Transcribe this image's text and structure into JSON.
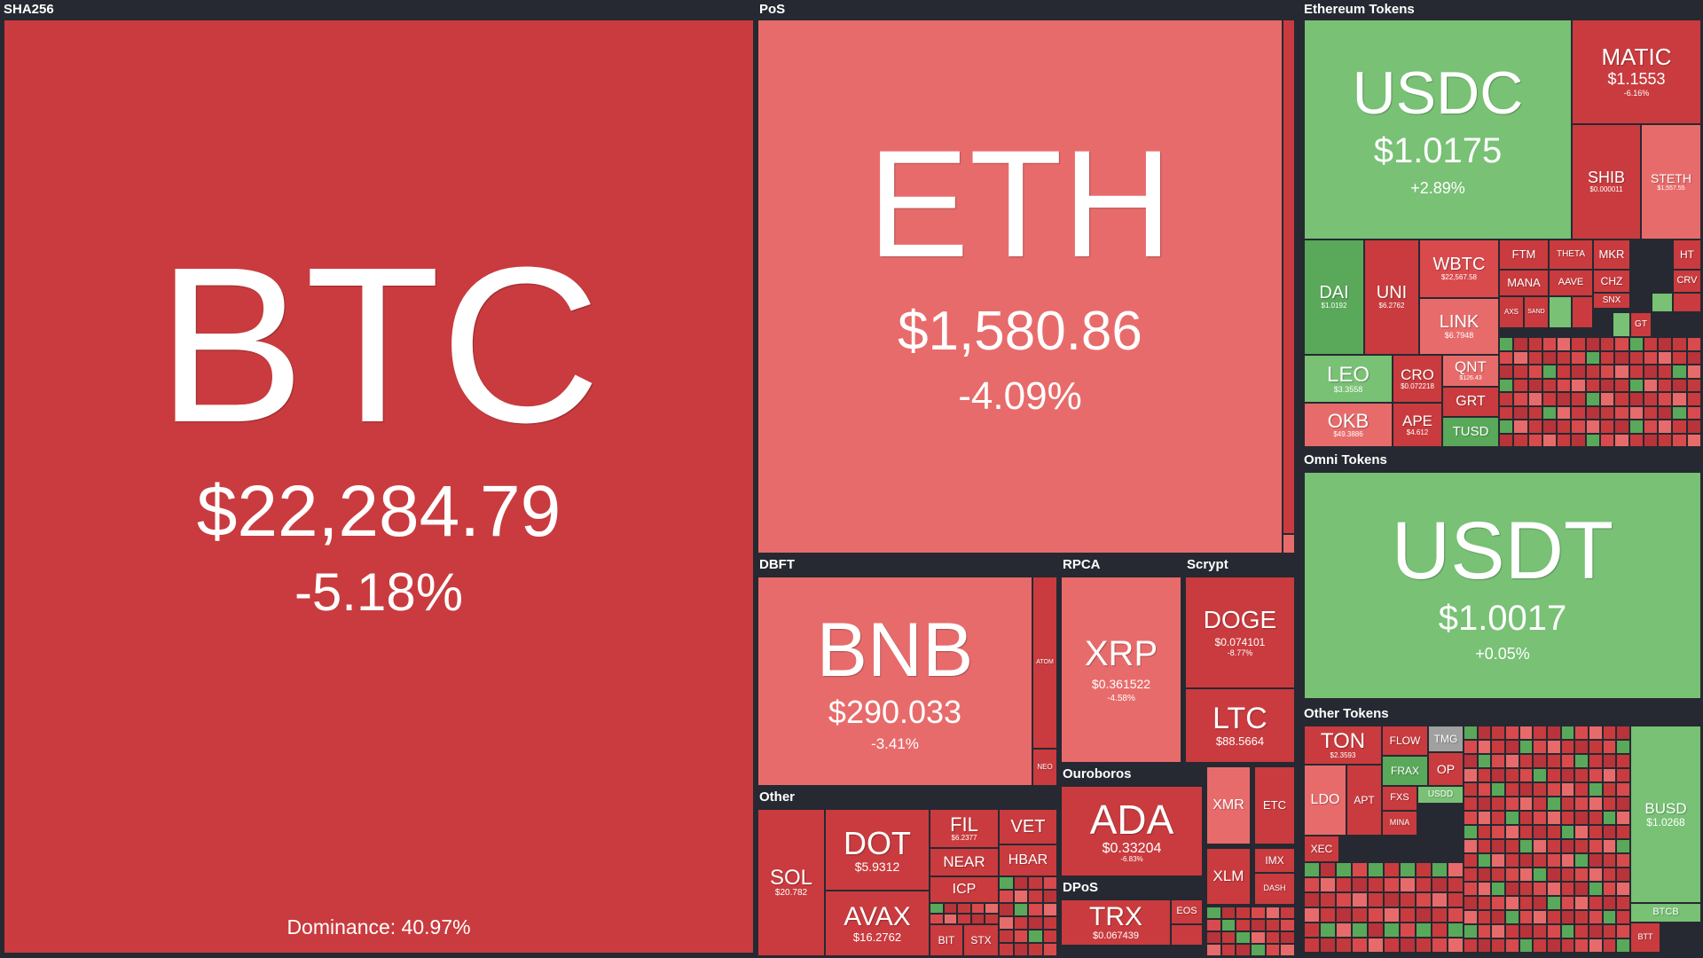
{
  "groups": {
    "sha256": "SHA256",
    "pos": "PoS",
    "eth_tokens": "Ethereum Tokens",
    "omni": "Omni Tokens",
    "other_tokens": "Other Tokens",
    "dbft": "DBFT",
    "rpca": "RPCA",
    "scrypt": "Scrypt",
    "other": "Other",
    "ouroboros": "Ouroboros",
    "dpos": "DPoS"
  },
  "tiles": {
    "btc": {
      "sym": "BTC",
      "price": "$22,284.79",
      "change": "-5.18%"
    },
    "btc_dominance": "Dominance: 40.97%",
    "eth": {
      "sym": "ETH",
      "price": "$1,580.86",
      "change": "-4.09%"
    },
    "usdc": {
      "sym": "USDC",
      "price": "$1.0175",
      "change": "+2.89%"
    },
    "matic": {
      "sym": "MATIC",
      "price": "$1.1553",
      "change": "-6.16%"
    },
    "shib": {
      "sym": "SHIB",
      "price": "$0.000011",
      "change": ""
    },
    "steth": {
      "sym": "STETH",
      "price": "$1,557.55",
      "change": ""
    },
    "dai": {
      "sym": "DAI",
      "price": "$1.0192",
      "change": ""
    },
    "uni": {
      "sym": "UNI",
      "price": "$6.2762",
      "change": ""
    },
    "wbtc": {
      "sym": "WBTC",
      "price": "$22,567.58",
      "change": ""
    },
    "link": {
      "sym": "LINK",
      "price": "$6.7948",
      "change": ""
    },
    "ftm": {
      "sym": "FTM",
      "price": "",
      "change": ""
    },
    "theta": {
      "sym": "THETA",
      "price": "",
      "change": ""
    },
    "mkr": {
      "sym": "MKR",
      "price": "",
      "change": ""
    },
    "ht": {
      "sym": "HT",
      "price": "",
      "change": ""
    },
    "mana": {
      "sym": "MANA",
      "price": "",
      "change": ""
    },
    "aave": {
      "sym": "AAVE",
      "price": "",
      "change": ""
    },
    "chz": {
      "sym": "CHZ",
      "price": "",
      "change": ""
    },
    "crv": {
      "sym": "CRV",
      "price": "",
      "change": ""
    },
    "snx": {
      "sym": "SNX",
      "price": "",
      "change": ""
    },
    "axs": {
      "sym": "AXS",
      "price": "",
      "change": ""
    },
    "sand": {
      "sym": "SAND",
      "price": "",
      "change": ""
    },
    "gt": {
      "sym": "GT",
      "price": "",
      "change": ""
    },
    "leo": {
      "sym": "LEO",
      "price": "$3.3558",
      "change": ""
    },
    "cro": {
      "sym": "CRO",
      "price": "$0.072218",
      "change": ""
    },
    "qnt": {
      "sym": "QNT",
      "price": "$126.43",
      "change": ""
    },
    "grt": {
      "sym": "GRT",
      "price": "",
      "change": ""
    },
    "okb": {
      "sym": "OKB",
      "price": "$49.3886",
      "change": ""
    },
    "ape": {
      "sym": "APE",
      "price": "$4.612",
      "change": ""
    },
    "tusd": {
      "sym": "TUSD",
      "price": "",
      "change": ""
    },
    "usdt": {
      "sym": "USDT",
      "price": "$1.0017",
      "change": "+0.05%"
    },
    "bnb": {
      "sym": "BNB",
      "price": "$290.033",
      "change": "-3.41%"
    },
    "atom": {
      "sym": "ATOM",
      "price": "",
      "change": ""
    },
    "neo": {
      "sym": "NEO",
      "price": "",
      "change": ""
    },
    "xrp": {
      "sym": "XRP",
      "price": "$0.361522",
      "change": "-4.58%"
    },
    "doge": {
      "sym": "DOGE",
      "price": "$0.074101",
      "change": "-8.77%"
    },
    "ltc": {
      "sym": "LTC",
      "price": "$88.5664",
      "change": ""
    },
    "sol": {
      "sym": "SOL",
      "price": "$20.782",
      "change": ""
    },
    "dot": {
      "sym": "DOT",
      "price": "$5.9312",
      "change": ""
    },
    "avax": {
      "sym": "AVAX",
      "price": "$16.2762",
      "change": ""
    },
    "fil": {
      "sym": "FIL",
      "price": "$6.2377",
      "change": ""
    },
    "vet": {
      "sym": "VET",
      "price": "",
      "change": ""
    },
    "near": {
      "sym": "NEAR",
      "price": "",
      "change": ""
    },
    "hbar": {
      "sym": "HBAR",
      "price": "",
      "change": ""
    },
    "icp": {
      "sym": "ICP",
      "price": "",
      "change": ""
    },
    "bit": {
      "sym": "BIT",
      "price": "",
      "change": ""
    },
    "stx": {
      "sym": "STX",
      "price": "",
      "change": ""
    },
    "ada": {
      "sym": "ADA",
      "price": "$0.33204",
      "change": "-6.83%"
    },
    "xmr": {
      "sym": "XMR",
      "price": "",
      "change": ""
    },
    "etc": {
      "sym": "ETC",
      "price": "",
      "change": ""
    },
    "xlm": {
      "sym": "XLM",
      "price": "",
      "change": ""
    },
    "imx": {
      "sym": "IMX",
      "price": "",
      "change": ""
    },
    "dash": {
      "sym": "DASH",
      "price": "",
      "change": ""
    },
    "trx": {
      "sym": "TRX",
      "price": "$0.067439",
      "change": ""
    },
    "eos": {
      "sym": "EOS",
      "price": "",
      "change": ""
    },
    "ton": {
      "sym": "TON",
      "price": "$2.3593",
      "change": ""
    },
    "flow": {
      "sym": "FLOW",
      "price": "",
      "change": ""
    },
    "tmg": {
      "sym": "TMG",
      "price": "",
      "change": ""
    },
    "frax": {
      "sym": "FRAX",
      "price": "",
      "change": ""
    },
    "op": {
      "sym": "OP",
      "price": "",
      "change": ""
    },
    "ldo": {
      "sym": "LDO",
      "price": "",
      "change": ""
    },
    "apt": {
      "sym": "APT",
      "price": "",
      "change": ""
    },
    "fxs": {
      "sym": "FXS",
      "price": "",
      "change": ""
    },
    "usdd": {
      "sym": "USDD",
      "price": "",
      "change": ""
    },
    "mina": {
      "sym": "MINA",
      "price": "",
      "change": ""
    },
    "xec": {
      "sym": "XEC",
      "price": "",
      "change": ""
    },
    "busd": {
      "sym": "BUSD",
      "price": "$1.0268",
      "change": ""
    },
    "btcb": {
      "sym": "BTCB",
      "price": "",
      "change": ""
    },
    "btt": {
      "sym": "BTT",
      "price": "",
      "change": ""
    }
  }
}
